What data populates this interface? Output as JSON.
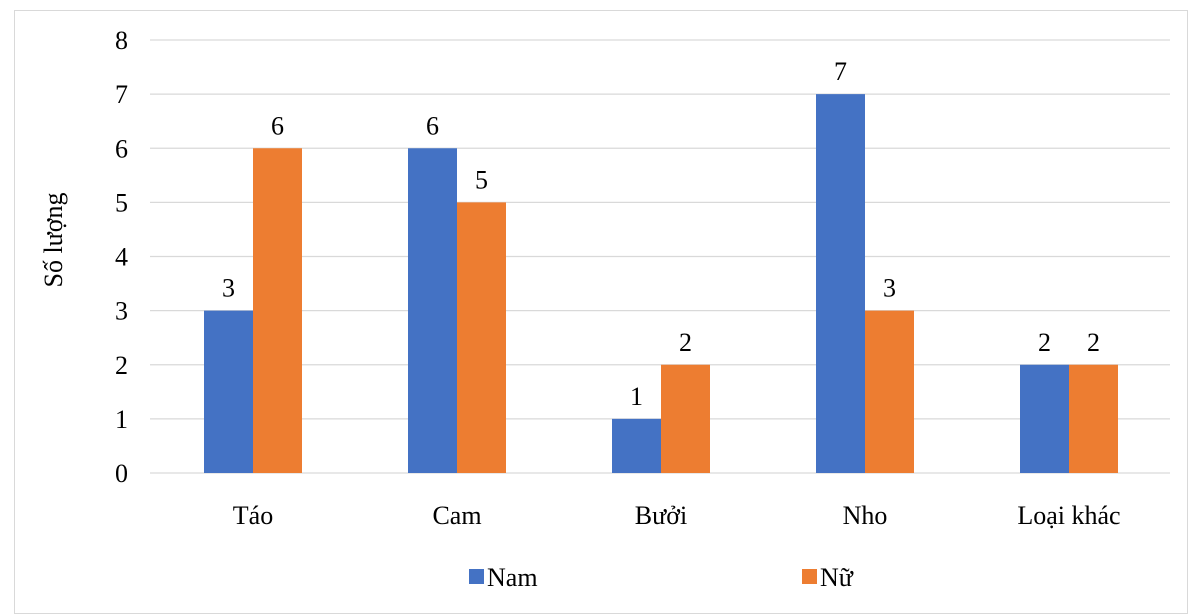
{
  "chart_data": {
    "type": "bar",
    "title": "",
    "xlabel": "",
    "ylabel": "Số lượng",
    "ylim": [
      0,
      8
    ],
    "yticks": [
      0,
      1,
      2,
      3,
      4,
      5,
      6,
      7,
      8
    ],
    "categories": [
      "Táo",
      "Cam",
      "Bưởi",
      "Nho",
      "Loại khác"
    ],
    "series": [
      {
        "name": "Nam",
        "values": [
          3,
          6,
          1,
          7,
          2
        ],
        "color": "#4472C4"
      },
      {
        "name": "Nữ",
        "values": [
          6,
          5,
          2,
          3,
          2
        ],
        "color": "#ED7D31"
      }
    ],
    "grid": true,
    "legend": "bottom",
    "data_labels": true,
    "gridline_color": "#d9d9d9"
  }
}
